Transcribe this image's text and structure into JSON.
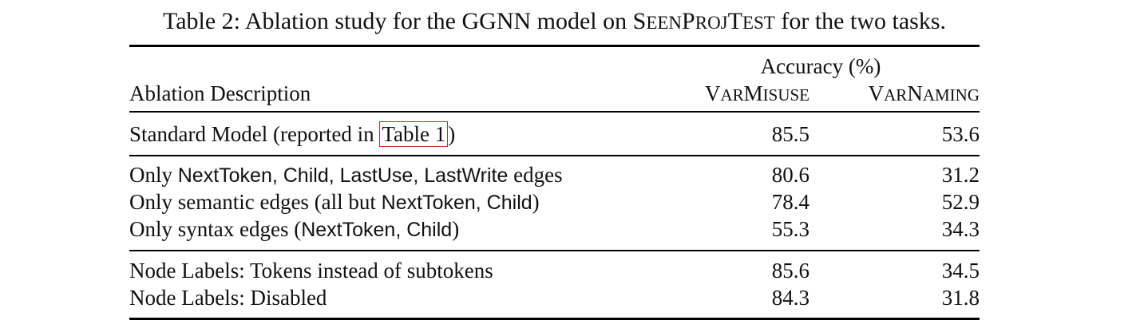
{
  "caption": {
    "prefix": "Table 2: Ablation study for the GGNN model on ",
    "dataset_parts": [
      {
        "text": "S",
        "size": "big"
      },
      {
        "text": "EEN",
        "size": "small"
      },
      {
        "text": "P",
        "size": "big"
      },
      {
        "text": "ROJ",
        "size": "small"
      },
      {
        "text": "T",
        "size": "big"
      },
      {
        "text": "EST",
        "size": "small"
      }
    ],
    "suffix": " for the two tasks."
  },
  "header": {
    "group_label": "Accuracy (%)",
    "description_label": "Ablation Description",
    "col1_parts": [
      {
        "text": "V",
        "size": "big"
      },
      {
        "text": "AR",
        "size": "small"
      },
      {
        "text": "M",
        "size": "big"
      },
      {
        "text": "ISUSE",
        "size": "small"
      }
    ],
    "col2_parts": [
      {
        "text": "V",
        "size": "big"
      },
      {
        "text": "AR",
        "size": "small"
      },
      {
        "text": "N",
        "size": "big"
      },
      {
        "text": "AMING",
        "size": "small"
      }
    ]
  },
  "rows": [
    {
      "desc": [
        {
          "text": "Standard Model (reported in ",
          "style": "serif"
        },
        {
          "text": "Table 1",
          "style": "ref"
        },
        {
          "text": ")",
          "style": "serif"
        }
      ],
      "varmisuse": "85.5",
      "varnaming": "53.6"
    },
    {
      "desc": [
        {
          "text": "Only ",
          "style": "serif"
        },
        {
          "text": "NextToken, Child, LastUse, LastWrite",
          "style": "sans"
        },
        {
          "text": " edges",
          "style": "serif"
        }
      ],
      "varmisuse": "80.6",
      "varnaming": "31.2"
    },
    {
      "desc": [
        {
          "text": "Only semantic edges (all but ",
          "style": "serif"
        },
        {
          "text": "NextToken, Child",
          "style": "sans"
        },
        {
          "text": ")",
          "style": "serif"
        }
      ],
      "varmisuse": "78.4",
      "varnaming": "52.9"
    },
    {
      "desc": [
        {
          "text": "Only syntax edges (",
          "style": "serif"
        },
        {
          "text": "NextToken, Child",
          "style": "sans"
        },
        {
          "text": ")",
          "style": "serif"
        }
      ],
      "varmisuse": "55.3",
      "varnaming": "34.3"
    },
    {
      "desc": [
        {
          "text": "Node Labels: Tokens instead of subtokens",
          "style": "serif"
        }
      ],
      "varmisuse": "85.6",
      "varnaming": "34.5"
    },
    {
      "desc": [
        {
          "text": "Node Labels: Disabled",
          "style": "serif"
        }
      ],
      "varmisuse": "84.3",
      "varnaming": "31.8"
    }
  ]
}
